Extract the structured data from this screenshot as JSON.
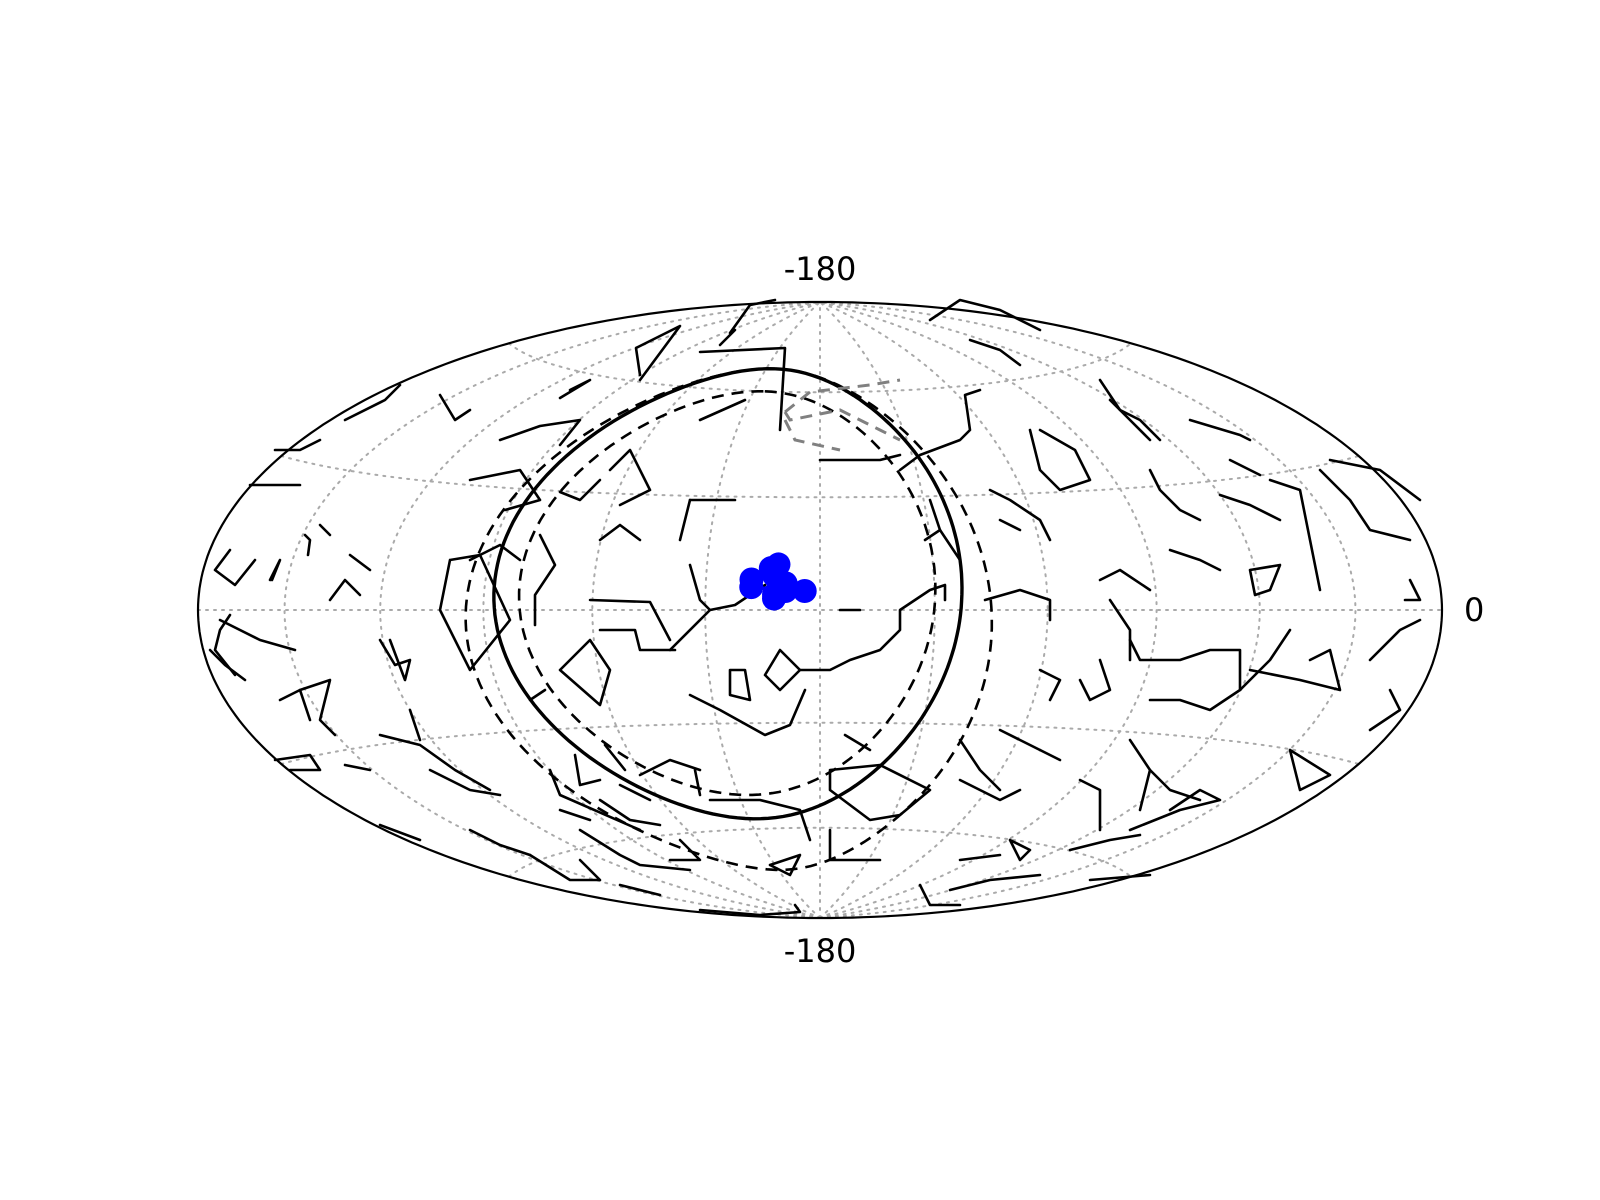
{
  "labels": {
    "top": "-180",
    "bottom": "-180",
    "right": "0"
  },
  "colors": {
    "background": "#ffffff",
    "outline": "#000000",
    "grid": "#aaaaaa",
    "constellation": "#000000",
    "highlight": "#0000ff",
    "secondary_dashed": "#808080"
  },
  "chart_data": {
    "type": "scatter",
    "projection": "hammer",
    "xlim": [
      -180,
      180
    ],
    "ylim": [
      -90,
      90
    ],
    "grid": true,
    "highlighted_constellation": {
      "points": [
        [
          -4,
          5
        ],
        [
          -9,
          7
        ],
        [
          -9,
          5
        ],
        [
          -18,
          6
        ],
        [
          -18,
          8
        ],
        [
          -11,
          12
        ],
        [
          -12,
          9
        ],
        [
          -13,
          11
        ],
        [
          -12,
          4
        ],
        [
          -12,
          3
        ]
      ],
      "edges": [
        [
          0,
          1
        ],
        [
          1,
          5
        ],
        [
          5,
          6
        ],
        [
          6,
          7
        ],
        [
          7,
          8
        ],
        [
          8,
          9
        ],
        [
          9,
          2
        ],
        [
          2,
          3
        ],
        [
          3,
          0
        ]
      ]
    },
    "curves": [
      {
        "style": "solid",
        "lon0": -25,
        "lat0": 5,
        "r": 62
      },
      {
        "style": "dashed",
        "lon0": -25,
        "lat0": 5,
        "r": 55
      },
      {
        "style": "dashed",
        "lon0": -25,
        "lat0": -3,
        "r": 70
      }
    ]
  }
}
